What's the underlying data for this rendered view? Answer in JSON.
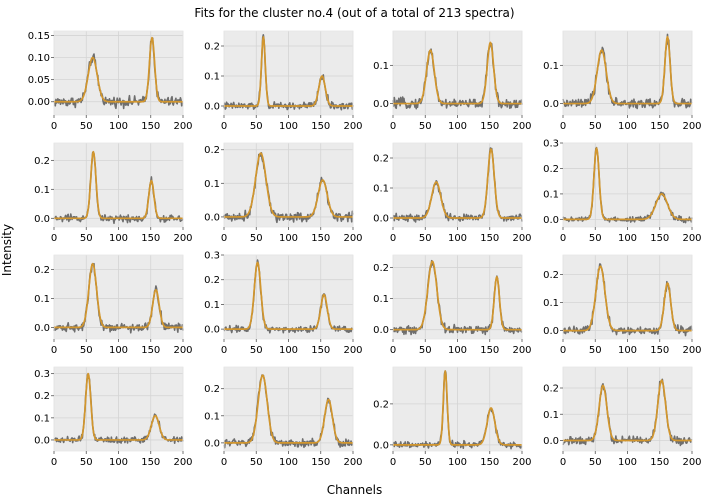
{
  "figure": {
    "title": "Fits for the cluster no.4 (out of a total of 213 spectra)",
    "xlabel": "Channels",
    "ylabel": "Intensity"
  },
  "colors": {
    "raw": "#6e6e6e",
    "fit": "#d2962d",
    "panel_bg": "#ebebeb",
    "grid": "#ffffff"
  },
  "chart_data": [
    {
      "type": "line",
      "xlim": [
        0,
        200
      ],
      "ylim": [
        -0.03,
        0.16
      ],
      "yticks": [
        0.0,
        0.05,
        0.1,
        0.15
      ],
      "ytick_labels": [
        "0.00",
        "0.05",
        "0.10",
        "0.15"
      ],
      "xticks": [
        0,
        50,
        100,
        150,
        200
      ],
      "peaks": [
        {
          "center": 60,
          "height": 0.1,
          "width": 7
        },
        {
          "center": 152,
          "height": 0.145,
          "width": 4
        }
      ],
      "noise": 0.007
    },
    {
      "type": "line",
      "xlim": [
        0,
        200
      ],
      "ylim": [
        -0.03,
        0.25
      ],
      "yticks": [
        0.0,
        0.1,
        0.2
      ],
      "ytick_labels": [
        "0.0",
        "0.1",
        "0.2"
      ],
      "xticks": [
        0,
        50,
        100,
        150,
        200
      ],
      "peaks": [
        {
          "center": 61,
          "height": 0.23,
          "width": 3
        },
        {
          "center": 152,
          "height": 0.1,
          "width": 5
        }
      ],
      "noise": 0.008
    },
    {
      "type": "line",
      "xlim": [
        0,
        200
      ],
      "ylim": [
        -0.03,
        0.19
      ],
      "yticks": [
        0.0,
        0.1
      ],
      "ytick_labels": [
        "0.0",
        "0.1"
      ],
      "xticks": [
        0,
        50,
        100,
        150,
        200
      ],
      "peaks": [
        {
          "center": 58,
          "height": 0.14,
          "width": 6
        },
        {
          "center": 151,
          "height": 0.16,
          "width": 5
        }
      ],
      "noise": 0.008
    },
    {
      "type": "line",
      "xlim": [
        0,
        200
      ],
      "ylim": [
        -0.03,
        0.19
      ],
      "yticks": [
        0.0,
        0.1
      ],
      "ytick_labels": [
        "0.0",
        "0.1"
      ],
      "xticks": [
        0,
        50,
        100,
        150,
        200
      ],
      "peaks": [
        {
          "center": 60,
          "height": 0.14,
          "width": 7
        },
        {
          "center": 162,
          "height": 0.175,
          "width": 4
        }
      ],
      "noise": 0.008
    },
    {
      "type": "line",
      "xlim": [
        0,
        200
      ],
      "ylim": [
        -0.03,
        0.26
      ],
      "yticks": [
        0.0,
        0.1,
        0.2
      ],
      "ytick_labels": [
        "0.0",
        "0.1",
        "0.2"
      ],
      "xticks": [
        0,
        50,
        100,
        150,
        200
      ],
      "peaks": [
        {
          "center": 61,
          "height": 0.23,
          "width": 4
        },
        {
          "center": 151,
          "height": 0.13,
          "width": 4
        }
      ],
      "noise": 0.008
    },
    {
      "type": "line",
      "xlim": [
        0,
        200
      ],
      "ylim": [
        -0.03,
        0.22
      ],
      "yticks": [
        0.0,
        0.1,
        0.2
      ],
      "ytick_labels": [
        "0.0",
        "0.1",
        "0.2"
      ],
      "xticks": [
        0,
        50,
        100,
        150,
        200
      ],
      "peaks": [
        {
          "center": 57,
          "height": 0.19,
          "width": 8
        },
        {
          "center": 153,
          "height": 0.11,
          "width": 7
        }
      ],
      "noise": 0.009
    },
    {
      "type": "line",
      "xlim": [
        0,
        200
      ],
      "ylim": [
        -0.03,
        0.25
      ],
      "yticks": [
        0.0,
        0.1,
        0.2
      ],
      "ytick_labels": [
        "0.0",
        "0.1",
        "0.2"
      ],
      "xticks": [
        0,
        50,
        100,
        150,
        200
      ],
      "peaks": [
        {
          "center": 67,
          "height": 0.12,
          "width": 7
        },
        {
          "center": 152,
          "height": 0.23,
          "width": 5
        }
      ],
      "noise": 0.008
    },
    {
      "type": "line",
      "xlim": [
        0,
        200
      ],
      "ylim": [
        -0.03,
        0.3
      ],
      "yticks": [
        0.0,
        0.1,
        0.2,
        0.3
      ],
      "ytick_labels": [
        "0.0",
        "0.1",
        "0.2",
        "0.3"
      ],
      "xticks": [
        0,
        50,
        100,
        150,
        200
      ],
      "peaks": [
        {
          "center": 52,
          "height": 0.28,
          "width": 4
        },
        {
          "center": 153,
          "height": 0.1,
          "width": 9
        }
      ],
      "noise": 0.007
    },
    {
      "type": "line",
      "xlim": [
        0,
        200
      ],
      "ylim": [
        -0.04,
        0.25
      ],
      "yticks": [
        0.0,
        0.1,
        0.2
      ],
      "ytick_labels": [
        "0.0",
        "0.1",
        "0.2"
      ],
      "xticks": [
        0,
        50,
        100,
        150,
        200
      ],
      "peaks": [
        {
          "center": 60,
          "height": 0.22,
          "width": 6
        },
        {
          "center": 158,
          "height": 0.13,
          "width": 5
        }
      ],
      "noise": 0.009
    },
    {
      "type": "line",
      "xlim": [
        0,
        200
      ],
      "ylim": [
        -0.04,
        0.3
      ],
      "yticks": [
        0.0,
        0.1,
        0.2,
        0.3
      ],
      "ytick_labels": [
        "0.0",
        "0.1",
        "0.2",
        "0.3"
      ],
      "xticks": [
        0,
        50,
        100,
        150,
        200
      ],
      "peaks": [
        {
          "center": 52,
          "height": 0.27,
          "width": 5
        },
        {
          "center": 155,
          "height": 0.14,
          "width": 5
        }
      ],
      "noise": 0.009
    },
    {
      "type": "line",
      "xlim": [
        0,
        200
      ],
      "ylim": [
        -0.03,
        0.24
      ],
      "yticks": [
        0.0,
        0.1,
        0.2
      ],
      "ytick_labels": [
        "0.0",
        "0.1",
        "0.2"
      ],
      "xticks": [
        0,
        50,
        100,
        150,
        200
      ],
      "peaks": [
        {
          "center": 61,
          "height": 0.22,
          "width": 7
        },
        {
          "center": 161,
          "height": 0.17,
          "width": 4
        }
      ],
      "noise": 0.009
    },
    {
      "type": "line",
      "xlim": [
        0,
        200
      ],
      "ylim": [
        -0.03,
        0.27
      ],
      "yticks": [
        0.0,
        0.1,
        0.2
      ],
      "ytick_labels": [
        "0.0",
        "0.1",
        "0.2"
      ],
      "xticks": [
        0,
        50,
        100,
        150,
        200
      ],
      "peaks": [
        {
          "center": 58,
          "height": 0.23,
          "width": 7
        },
        {
          "center": 162,
          "height": 0.17,
          "width": 5
        }
      ],
      "noise": 0.009
    },
    {
      "type": "line",
      "xlim": [
        0,
        200
      ],
      "ylim": [
        -0.05,
        0.33
      ],
      "yticks": [
        0.0,
        0.1,
        0.2,
        0.3
      ],
      "ytick_labels": [
        "0.0",
        "0.1",
        "0.2",
        "0.3"
      ],
      "xticks": [
        0,
        50,
        100,
        150,
        200
      ],
      "peaks": [
        {
          "center": 53,
          "height": 0.3,
          "width": 4
        },
        {
          "center": 157,
          "height": 0.11,
          "width": 6
        }
      ],
      "noise": 0.009
    },
    {
      "type": "line",
      "xlim": [
        0,
        200
      ],
      "ylim": [
        -0.03,
        0.28
      ],
      "yticks": [
        0.0,
        0.1,
        0.2
      ],
      "ytick_labels": [
        "0.0",
        "0.1",
        "0.2"
      ],
      "xticks": [
        0,
        50,
        100,
        150,
        200
      ],
      "peaks": [
        {
          "center": 60,
          "height": 0.25,
          "width": 7
        },
        {
          "center": 162,
          "height": 0.16,
          "width": 6
        }
      ],
      "noise": 0.01
    },
    {
      "type": "line",
      "xlim": [
        0,
        200
      ],
      "ylim": [
        -0.03,
        0.38
      ],
      "yticks": [
        0.0,
        0.2
      ],
      "ytick_labels": [
        "0.0",
        "0.2"
      ],
      "xticks": [
        0,
        50,
        100,
        150,
        200
      ],
      "peaks": [
        {
          "center": 81,
          "height": 0.36,
          "width": 3
        },
        {
          "center": 152,
          "height": 0.18,
          "width": 6
        }
      ],
      "noise": 0.01
    },
    {
      "type": "line",
      "xlim": [
        0,
        200
      ],
      "ylim": [
        -0.04,
        0.28
      ],
      "yticks": [
        0.0,
        0.1,
        0.2
      ],
      "ytick_labels": [
        "0.0",
        "0.1",
        "0.2"
      ],
      "xticks": [
        0,
        50,
        100,
        150,
        200
      ],
      "peaks": [
        {
          "center": 62,
          "height": 0.21,
          "width": 6
        },
        {
          "center": 153,
          "height": 0.23,
          "width": 6
        }
      ],
      "noise": 0.01
    }
  ]
}
